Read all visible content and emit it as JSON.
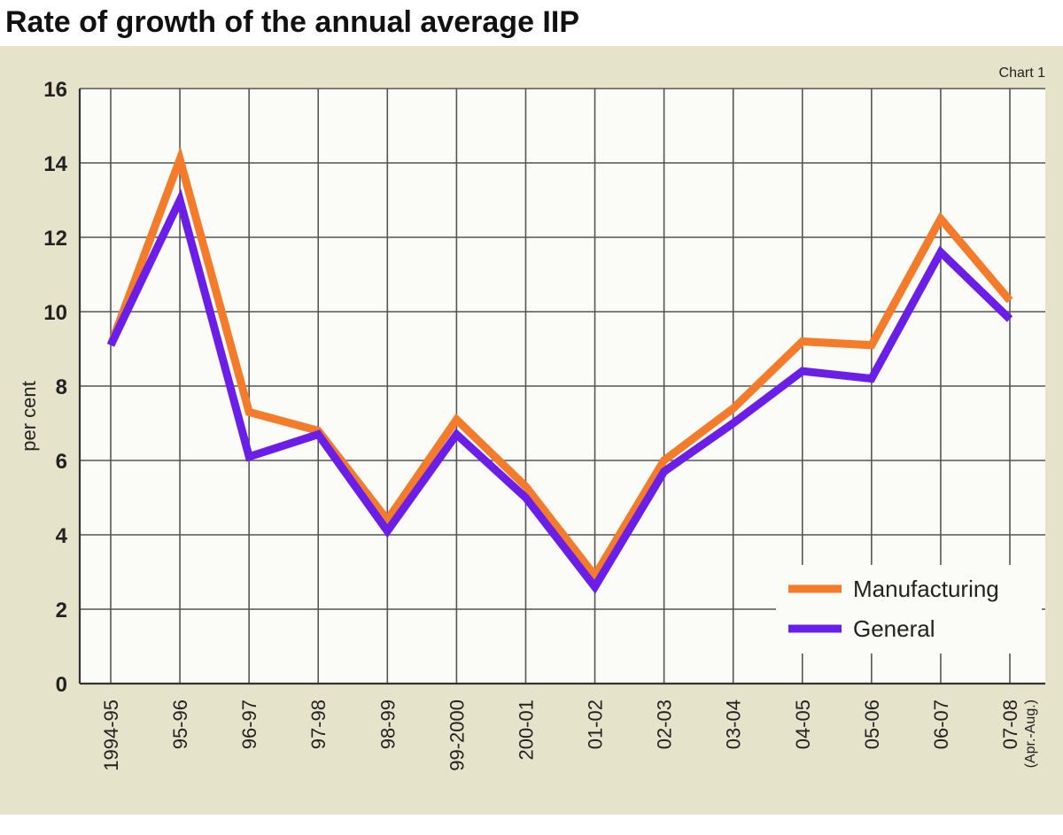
{
  "title": "Rate of growth of the annual average IIP",
  "chart_label": "Chart 1",
  "colors": {
    "panel": "#e6e3cb",
    "plot": "#fbfbf7",
    "grid": "#555555",
    "manufacturing": "#f47b2a",
    "general": "#6a1ee8"
  },
  "chart_data": {
    "type": "line",
    "title": "Rate of growth of the annual average IIP",
    "xlabel": "",
    "ylabel": "per cent",
    "ylim": [
      0,
      16
    ],
    "yticks": [
      0,
      2,
      4,
      6,
      8,
      10,
      12,
      14,
      16
    ],
    "grid": true,
    "legend_position": "bottom-right",
    "categories": [
      "1994-95",
      "95-96",
      "96-97",
      "97-98",
      "98-99",
      "99-2000",
      "200-01",
      "01-02",
      "02-03",
      "03-04",
      "04-05",
      "05-06",
      "06-07",
      "07-08"
    ],
    "category_sublabels": [
      "",
      "",
      "",
      "",
      "",
      "",
      "",
      "",
      "",
      "",
      "",
      "",
      "",
      "(Apr.-Aug.)"
    ],
    "series": [
      {
        "name": "Manufacturing",
        "color": "#f47b2a",
        "values": [
          9.1,
          14.1,
          7.3,
          6.8,
          4.4,
          7.1,
          5.3,
          2.9,
          6.0,
          7.4,
          9.2,
          9.1,
          12.5,
          10.3
        ]
      },
      {
        "name": "General",
        "color": "#6a1ee8",
        "values": [
          9.1,
          13.0,
          6.1,
          6.7,
          4.1,
          6.7,
          5.0,
          2.6,
          5.7,
          7.0,
          8.4,
          8.2,
          11.6,
          9.8
        ]
      }
    ]
  }
}
